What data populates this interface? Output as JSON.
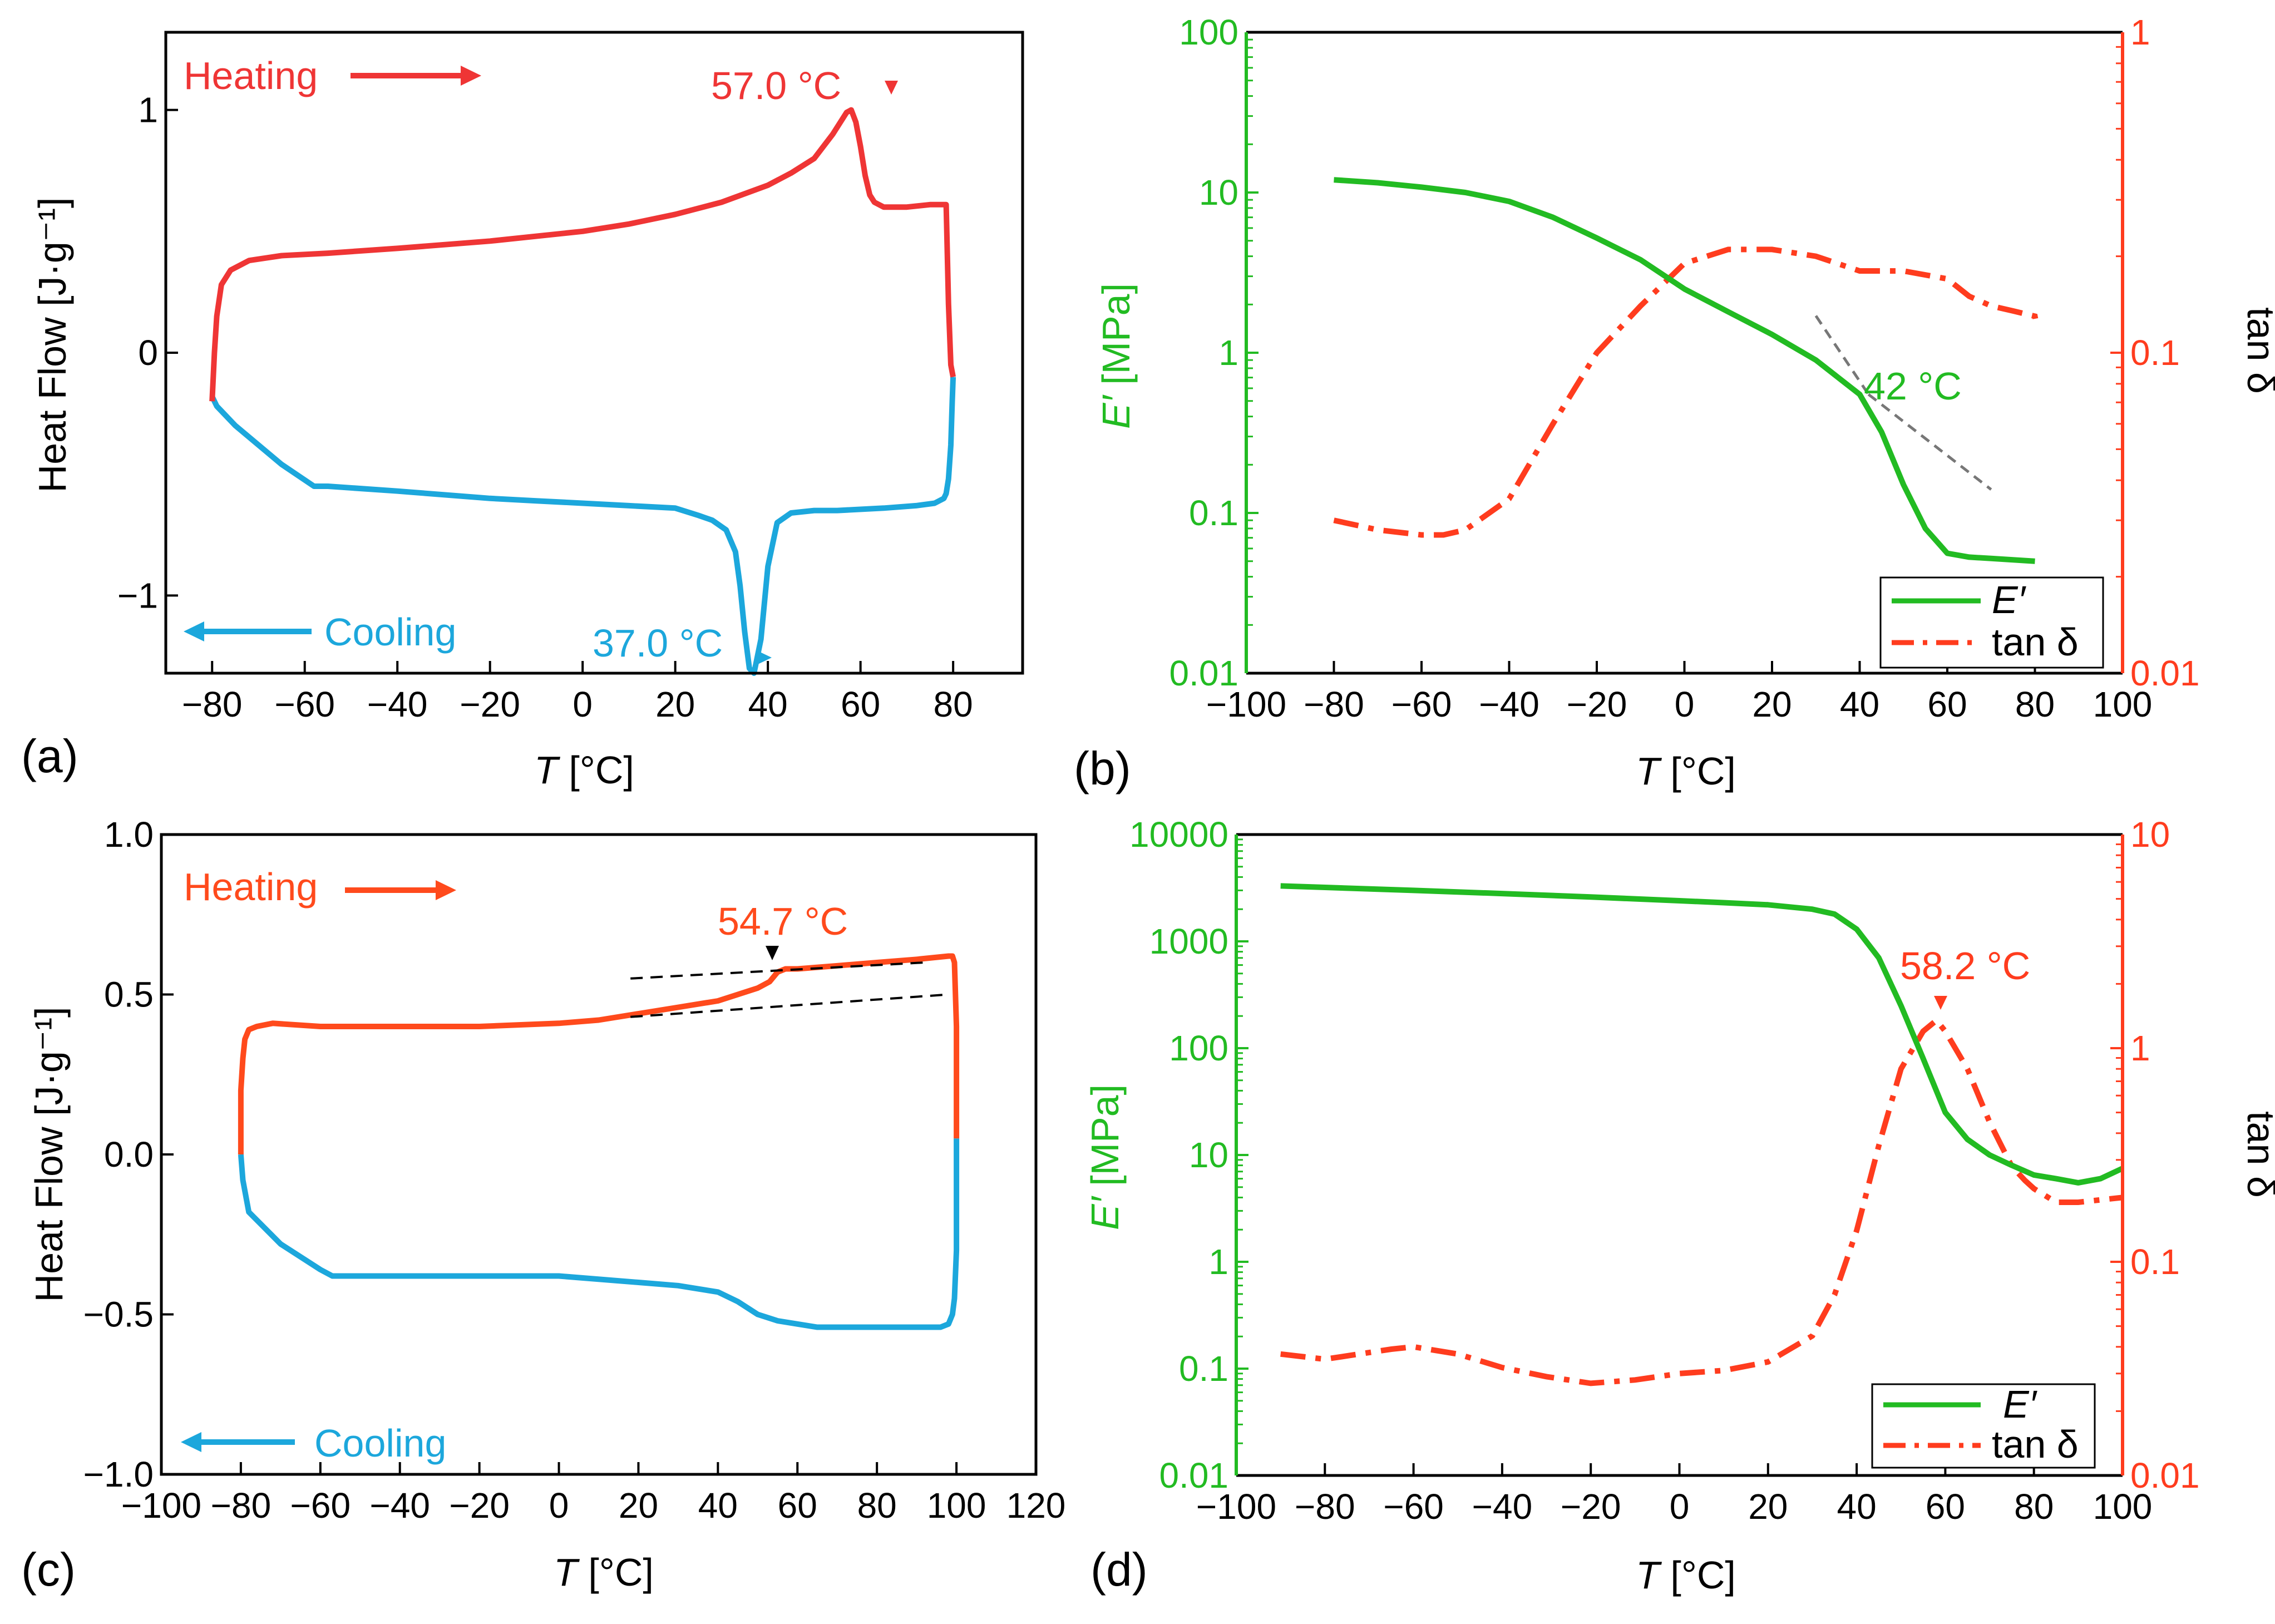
{
  "colors": {
    "heating_a": "#ef3535",
    "cooling": "#1ca7dc",
    "heating_c": "#ff4a1c",
    "storage": "#22bb22",
    "tand": "#ff3c1e",
    "dash": "#777777",
    "black": "#000000"
  },
  "chart_data": [
    {
      "panel": "(a)",
      "type": "line",
      "xlabel_sym": "T",
      "xlabel_unit": " [°C]",
      "ylabel": "Heat Flow [J·g⁻¹]",
      "xlim": [
        -90,
        95
      ],
      "ylim": [
        -1.32,
        1.32
      ],
      "xticks": [
        -80,
        -60,
        -40,
        -20,
        0,
        20,
        40,
        60,
        80
      ],
      "yticks": [
        1,
        0,
        -1
      ],
      "ytick_labels": [
        "1",
        "0",
        "−1"
      ],
      "legend": {
        "heating": "Heating",
        "cooling": "Cooling"
      },
      "annotations": {
        "heat_peak": "57.0 °C",
        "cool_peak": "37.0 °C"
      },
      "series": [
        {
          "name": "Heating",
          "x": [
            -80,
            -79.5,
            -79,
            -78,
            -76,
            -72,
            -65,
            -55,
            -40,
            -20,
            0,
            10,
            20,
            30,
            40,
            45,
            50,
            54,
            57,
            58,
            59,
            60,
            61,
            62,
            63,
            65,
            70,
            75,
            78.5,
            79,
            79.5,
            80
          ],
          "y": [
            -0.2,
            0.0,
            0.15,
            0.28,
            0.34,
            0.38,
            0.4,
            0.41,
            0.43,
            0.46,
            0.5,
            0.53,
            0.57,
            0.62,
            0.69,
            0.74,
            0.8,
            0.9,
            0.99,
            1.0,
            0.95,
            0.85,
            0.73,
            0.65,
            0.62,
            0.6,
            0.6,
            0.61,
            0.61,
            0.2,
            -0.05,
            -0.1
          ]
        },
        {
          "name": "Cooling",
          "x": [
            80,
            79.8,
            79.5,
            79,
            78.5,
            78,
            76,
            72,
            65,
            55,
            50,
            45,
            42,
            40,
            38.5,
            37,
            36,
            35,
            34,
            33,
            31,
            28,
            25,
            20,
            10,
            0,
            -10,
            -20,
            -40,
            -55,
            -58,
            -65,
            -75,
            -79,
            -80
          ],
          "y": [
            -0.1,
            -0.2,
            -0.38,
            -0.52,
            -0.58,
            -0.6,
            -0.62,
            -0.63,
            -0.64,
            -0.65,
            -0.65,
            -0.66,
            -0.7,
            -0.88,
            -1.18,
            -1.32,
            -1.3,
            -1.15,
            -0.96,
            -0.82,
            -0.73,
            -0.69,
            -0.67,
            -0.64,
            -0.63,
            -0.62,
            -0.61,
            -0.6,
            -0.57,
            -0.55,
            -0.55,
            -0.46,
            -0.3,
            -0.22,
            -0.18
          ]
        }
      ]
    },
    {
      "panel": "(b)",
      "type": "line",
      "xlabel_sym": "T",
      "xlabel_unit": " [°C]",
      "ylabel_sym": "E′",
      "ylabel_unit": " [MPa]",
      "y2label": "tan δ",
      "xlim": [
        -100,
        100
      ],
      "ylim": [
        0.01,
        100
      ],
      "y2lim": [
        0.01,
        1
      ],
      "xticks": [
        -100,
        -80,
        -60,
        -40,
        -20,
        0,
        20,
        40,
        60,
        80,
        100
      ],
      "yticks": [
        100,
        10,
        1,
        0.1,
        0.01
      ],
      "ytick_labels": [
        "100",
        "10",
        "1",
        "0.1",
        "0.01"
      ],
      "y2ticks": [
        1,
        0.1,
        0.01
      ],
      "y2tick_labels": [
        "1",
        "0.1",
        "0.01"
      ],
      "legend": {
        "storage": "E′",
        "tand": "tan δ"
      },
      "annotations": {
        "transition": "42 °C"
      },
      "tangent_lines": [
        {
          "x": [
            30,
            42
          ],
          "y": [
            1.7,
            0.55
          ]
        },
        {
          "x": [
            42,
            70
          ],
          "y": [
            0.55,
            0.14
          ]
        }
      ],
      "series": [
        {
          "name": "E′",
          "x": [
            -80,
            -70,
            -60,
            -50,
            -40,
            -30,
            -20,
            -10,
            0,
            10,
            20,
            30,
            40,
            45,
            50,
            55,
            60,
            65,
            70,
            80
          ],
          "y": [
            12,
            11.5,
            10.8,
            10,
            8.8,
            7,
            5.2,
            3.8,
            2.5,
            1.8,
            1.3,
            0.9,
            0.55,
            0.32,
            0.15,
            0.08,
            0.056,
            0.053,
            0.052,
            0.05
          ]
        },
        {
          "name": "tan δ",
          "x": [
            -80,
            -70,
            -60,
            -55,
            -50,
            -40,
            -30,
            -20,
            -10,
            0,
            10,
            20,
            30,
            40,
            50,
            60,
            65,
            70,
            75,
            80,
            80.5
          ],
          "y": [
            0.03,
            0.028,
            0.027,
            0.027,
            0.028,
            0.035,
            0.06,
            0.1,
            0.14,
            0.19,
            0.21,
            0.21,
            0.2,
            0.18,
            0.18,
            0.17,
            0.15,
            0.14,
            0.135,
            0.13,
            0.12
          ]
        }
      ]
    },
    {
      "panel": "(c)",
      "type": "line",
      "xlabel_sym": "T",
      "xlabel_unit": " [°C]",
      "ylabel": "Heat Flow [J·g⁻¹]",
      "xlim": [
        -100,
        120
      ],
      "ylim": [
        -1.0,
        1.0
      ],
      "xticks": [
        -100,
        -80,
        -60,
        -40,
        -20,
        0,
        20,
        40,
        60,
        80,
        100,
        120
      ],
      "yticks": [
        1.0,
        0.5,
        0.0,
        -0.5,
        -1.0
      ],
      "ytick_labels": [
        "1.0",
        "0.5",
        "0.0",
        "−0.5",
        "−1.0"
      ],
      "legend": {
        "heating": "Heating",
        "cooling": "Cooling"
      },
      "annotations": {
        "transition": "54.7 °C"
      },
      "tangent_lines": [
        {
          "x": [
            18,
            98
          ],
          "y": [
            0.43,
            0.5
          ]
        },
        {
          "x": [
            18,
            92
          ],
          "y": [
            0.55,
            0.6
          ]
        }
      ],
      "series": [
        {
          "name": "Heating",
          "x": [
            -80,
            -80,
            -79.5,
            -79,
            -78,
            -76,
            -72,
            -60,
            -40,
            -20,
            0,
            10,
            20,
            30,
            40,
            45,
            50,
            53,
            55,
            57,
            60,
            70,
            80,
            90,
            98,
            99,
            99.5,
            100,
            100
          ],
          "y": [
            0.0,
            0.2,
            0.3,
            0.36,
            0.39,
            0.4,
            0.41,
            0.4,
            0.4,
            0.4,
            0.41,
            0.42,
            0.44,
            0.46,
            0.48,
            0.5,
            0.52,
            0.54,
            0.57,
            0.58,
            0.58,
            0.59,
            0.6,
            0.61,
            0.62,
            0.62,
            0.6,
            0.4,
            0.05
          ]
        },
        {
          "name": "Cooling",
          "x": [
            100,
            100,
            99.5,
            99,
            98,
            96,
            92,
            85,
            75,
            65,
            60,
            55,
            50,
            45,
            40,
            30,
            20,
            0,
            -20,
            -40,
            -55,
            -57,
            -60,
            -70,
            -78,
            -79.5,
            -80
          ],
          "y": [
            0.05,
            -0.3,
            -0.45,
            -0.5,
            -0.53,
            -0.54,
            -0.54,
            -0.54,
            -0.54,
            -0.54,
            -0.53,
            -0.52,
            -0.5,
            -0.46,
            -0.43,
            -0.41,
            -0.4,
            -0.38,
            -0.38,
            -0.38,
            -0.38,
            -0.38,
            -0.36,
            -0.28,
            -0.18,
            -0.08,
            0.0
          ]
        }
      ]
    },
    {
      "panel": "(d)",
      "type": "line",
      "xlabel_sym": "T",
      "xlabel_unit": " [°C]",
      "ylabel_sym": "E′",
      "ylabel_unit": " [MPa]",
      "y2label": "tan δ",
      "xlim": [
        -100,
        100
      ],
      "ylim": [
        0.01,
        10000
      ],
      "y2lim": [
        0.01,
        10
      ],
      "xticks": [
        -100,
        -80,
        -60,
        -40,
        -20,
        0,
        20,
        40,
        60,
        80,
        100
      ],
      "yticks": [
        10000,
        1000,
        100,
        10,
        1,
        0.1,
        0.01
      ],
      "ytick_labels": [
        "10000",
        "1000",
        "100",
        "10",
        "1",
        "0.1",
        "0.01"
      ],
      "y2ticks": [
        10,
        1,
        0.1,
        0.01
      ],
      "y2tick_labels": [
        "10",
        "1",
        "0.1",
        "0.01"
      ],
      "legend": {
        "storage": "E′",
        "tand": "tan δ"
      },
      "annotations": {
        "tand_peak": "58.2 °C"
      },
      "series": [
        {
          "name": "E′",
          "x": [
            -90,
            -80,
            -60,
            -40,
            -20,
            0,
            10,
            20,
            30,
            35,
            40,
            45,
            50,
            55,
            60,
            65,
            70,
            75,
            80,
            85,
            90,
            95,
            100
          ],
          "y": [
            3300,
            3200,
            3000,
            2800,
            2600,
            2400,
            2300,
            2200,
            2000,
            1800,
            1300,
            700,
            250,
            80,
            25,
            14,
            10,
            8,
            6.5,
            6,
            5.5,
            6,
            7.5
          ]
        },
        {
          "name": "tan δ",
          "x": [
            -90,
            -80,
            -65,
            -60,
            -50,
            -40,
            -30,
            -20,
            -10,
            0,
            10,
            20,
            30,
            35,
            40,
            45,
            50,
            55,
            58,
            60,
            65,
            70,
            75,
            78,
            80,
            85,
            90,
            100
          ],
          "y": [
            0.037,
            0.035,
            0.039,
            0.04,
            0.037,
            0.032,
            0.029,
            0.027,
            0.028,
            0.03,
            0.031,
            0.034,
            0.045,
            0.07,
            0.14,
            0.35,
            0.8,
            1.2,
            1.35,
            1.2,
            0.8,
            0.45,
            0.28,
            0.24,
            0.22,
            0.19,
            0.19,
            0.2
          ]
        }
      ]
    }
  ]
}
